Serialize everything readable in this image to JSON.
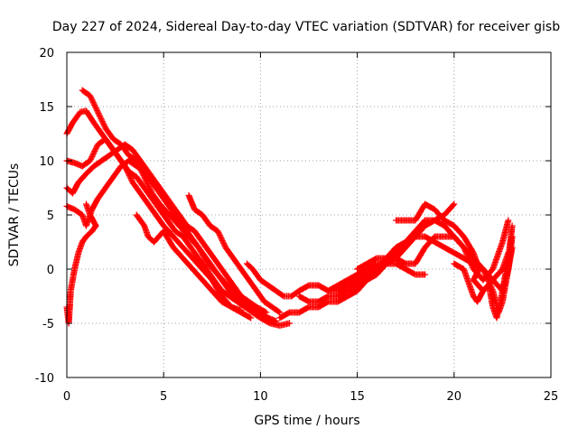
{
  "chart_data": {
    "type": "scatter",
    "title": "Day 227 of 2024, Sidereal Day-to-day VTEC variation (SDTVAR) for receiver gisb",
    "xlabel": "GPS time / hours",
    "ylabel": "SDTVAR / TECUs",
    "xlim": [
      0,
      25
    ],
    "ylim": [
      -10,
      20
    ],
    "xticks": [
      0,
      5,
      10,
      15,
      20,
      25
    ],
    "yticks": [
      -10,
      -5,
      0,
      5,
      10,
      15,
      20
    ],
    "xtick_labels": [
      "0",
      "5",
      "10",
      "15",
      "20",
      "25"
    ],
    "ytick_labels": [
      "-10",
      "-5",
      "0",
      "5",
      "10",
      "15",
      "20"
    ],
    "grid": true,
    "marker": "+",
    "color": "#ff0000",
    "series": [
      {
        "name": "trace-1",
        "points": [
          [
            0.0,
            12.5
          ],
          [
            0.3,
            13.5
          ],
          [
            0.7,
            14.5
          ],
          [
            1.0,
            14.6
          ],
          [
            1.4,
            13.5
          ],
          [
            1.8,
            12.5
          ],
          [
            2.2,
            11.5
          ],
          [
            2.6,
            10.5
          ],
          [
            3.0,
            9.5
          ],
          [
            3.4,
            8.0
          ],
          [
            3.8,
            7.0
          ],
          [
            4.2,
            6.0
          ],
          [
            4.6,
            5.0
          ],
          [
            5.0,
            4.0
          ],
          [
            5.5,
            3.0
          ],
          [
            6.0,
            2.0
          ],
          [
            6.5,
            1.0
          ],
          [
            7.0,
            0.0
          ],
          [
            7.5,
            -1.0
          ],
          [
            8.0,
            -2.5
          ],
          [
            8.5,
            -3.5
          ],
          [
            9.0,
            -4.0
          ],
          [
            9.5,
            -4.5
          ]
        ]
      },
      {
        "name": "trace-2",
        "points": [
          [
            0.8,
            16.5
          ],
          [
            1.2,
            16.0
          ],
          [
            1.6,
            14.5
          ],
          [
            2.0,
            13.0
          ],
          [
            2.4,
            12.0
          ],
          [
            2.8,
            11.5
          ],
          [
            3.2,
            10.5
          ],
          [
            3.6,
            10.0
          ],
          [
            4.0,
            8.5
          ],
          [
            4.4,
            7.0
          ],
          [
            4.8,
            6.0
          ],
          [
            5.3,
            5.0
          ],
          [
            5.8,
            4.0
          ],
          [
            6.3,
            3.0
          ],
          [
            6.8,
            2.0
          ],
          [
            7.3,
            0.5
          ],
          [
            7.8,
            -0.5
          ],
          [
            8.3,
            -1.5
          ],
          [
            8.8,
            -2.5
          ],
          [
            9.3,
            -3.0
          ],
          [
            9.8,
            -3.5
          ],
          [
            10.3,
            -4.0
          ]
        ]
      },
      {
        "name": "trace-3",
        "points": [
          [
            0.0,
            10.0
          ],
          [
            0.4,
            9.8
          ],
          [
            0.8,
            9.5
          ],
          [
            1.2,
            10.0
          ],
          [
            1.6,
            11.5
          ],
          [
            2.0,
            12.0
          ],
          [
            2.4,
            11.0
          ],
          [
            2.8,
            10.0
          ],
          [
            3.2,
            9.0
          ],
          [
            3.6,
            8.5
          ],
          [
            4.0,
            7.5
          ],
          [
            4.4,
            6.5
          ],
          [
            4.8,
            5.5
          ],
          [
            5.2,
            4.5
          ],
          [
            5.6,
            3.5
          ],
          [
            6.0,
            3.0
          ],
          [
            6.4,
            2.0
          ],
          [
            6.8,
            1.0
          ],
          [
            7.2,
            0.0
          ],
          [
            7.6,
            -1.0
          ],
          [
            8.0,
            -2.0
          ],
          [
            8.4,
            -2.5
          ],
          [
            8.8,
            -3.0
          ],
          [
            9.2,
            -3.5
          ],
          [
            9.6,
            -4.0
          ],
          [
            10.0,
            -4.5
          ],
          [
            10.5,
            -5.0
          ],
          [
            11.0,
            -5.2
          ],
          [
            11.5,
            -5.0
          ]
        ]
      },
      {
        "name": "trace-4",
        "points": [
          [
            0.0,
            7.5
          ],
          [
            0.3,
            7.0
          ],
          [
            0.6,
            8.0
          ],
          [
            1.0,
            8.8
          ],
          [
            1.4,
            9.5
          ],
          [
            1.8,
            10.0
          ],
          [
            2.2,
            10.5
          ],
          [
            2.6,
            11.0
          ],
          [
            3.0,
            11.5
          ],
          [
            3.4,
            11.0
          ],
          [
            3.8,
            10.0
          ],
          [
            4.2,
            9.0
          ],
          [
            4.6,
            8.0
          ],
          [
            5.0,
            7.0
          ],
          [
            5.4,
            6.0
          ],
          [
            5.8,
            5.0
          ],
          [
            6.2,
            4.0
          ],
          [
            6.6,
            3.5
          ],
          [
            7.0,
            2.5
          ],
          [
            7.4,
            1.5
          ],
          [
            7.8,
            0.5
          ],
          [
            8.2,
            -0.5
          ],
          [
            8.6,
            -1.5
          ],
          [
            9.0,
            -2.5
          ],
          [
            9.4,
            -3.0
          ],
          [
            9.8,
            -3.5
          ]
        ]
      },
      {
        "name": "trace-5",
        "points": [
          [
            0.0,
            5.8
          ],
          [
            0.4,
            5.5
          ],
          [
            0.8,
            5.0
          ],
          [
            1.0,
            4.0
          ],
          [
            1.3,
            5.5
          ],
          [
            1.6,
            6.5
          ],
          [
            2.0,
            7.5
          ],
          [
            2.4,
            8.5
          ],
          [
            2.8,
            9.5
          ],
          [
            3.2,
            10.0
          ],
          [
            3.6,
            9.5
          ],
          [
            4.0,
            9.0
          ],
          [
            4.4,
            8.0
          ],
          [
            4.8,
            7.0
          ],
          [
            5.2,
            6.0
          ],
          [
            5.6,
            5.0
          ],
          [
            6.0,
            4.0
          ],
          [
            6.4,
            3.0
          ],
          [
            6.8,
            2.0
          ],
          [
            7.2,
            1.0
          ],
          [
            7.6,
            0.0
          ],
          [
            8.0,
            -1.0
          ],
          [
            8.4,
            -2.0
          ],
          [
            8.8,
            -2.5
          ],
          [
            9.2,
            -3.0
          ],
          [
            9.6,
            -3.5
          ],
          [
            10.0,
            -4.0
          ],
          [
            10.4,
            -4.5
          ],
          [
            10.8,
            -4.8
          ]
        ]
      },
      {
        "name": "trace-6",
        "points": [
          [
            0.0,
            -3.5
          ],
          [
            0.1,
            -5.0
          ],
          [
            0.2,
            -2.0
          ],
          [
            0.4,
            0.0
          ],
          [
            0.6,
            1.5
          ],
          [
            0.8,
            2.5
          ],
          [
            1.0,
            3.0
          ],
          [
            1.3,
            3.5
          ],
          [
            1.5,
            4.0
          ],
          [
            1.2,
            5.0
          ],
          [
            1.0,
            6.0
          ]
        ]
      },
      {
        "name": "trace-7",
        "points": [
          [
            3.6,
            5.0
          ],
          [
            4.0,
            4.0
          ],
          [
            4.2,
            3.0
          ],
          [
            4.5,
            2.5
          ],
          [
            5.0,
            3.5
          ],
          [
            5.5,
            2.0
          ],
          [
            6.0,
            1.0
          ],
          [
            6.5,
            0.0
          ],
          [
            7.0,
            -1.0
          ],
          [
            7.5,
            -2.0
          ],
          [
            8.0,
            -3.0
          ],
          [
            8.5,
            -3.5
          ],
          [
            9.0,
            -3.8
          ]
        ]
      },
      {
        "name": "trace-8",
        "points": [
          [
            6.3,
            6.8
          ],
          [
            6.6,
            5.5
          ],
          [
            7.0,
            5.0
          ],
          [
            7.4,
            4.0
          ],
          [
            7.8,
            3.5
          ],
          [
            8.2,
            2.0
          ],
          [
            8.6,
            1.0
          ],
          [
            9.0,
            0.0
          ],
          [
            9.4,
            -1.0
          ],
          [
            9.8,
            -2.0
          ],
          [
            10.2,
            -3.0
          ],
          [
            10.6,
            -3.5
          ],
          [
            11.0,
            -4.0
          ]
        ]
      },
      {
        "name": "trace-9",
        "points": [
          [
            9.3,
            0.5
          ],
          [
            9.6,
            0.0
          ],
          [
            10.0,
            -1.0
          ],
          [
            10.4,
            -1.5
          ],
          [
            10.8,
            -2.0
          ],
          [
            11.2,
            -2.5
          ],
          [
            11.6,
            -2.5
          ],
          [
            12.0,
            -2.0
          ],
          [
            12.5,
            -1.5
          ],
          [
            13.0,
            -1.5
          ],
          [
            13.5,
            -2.0
          ],
          [
            14.0,
            -2.0
          ],
          [
            14.5,
            -1.5
          ],
          [
            15.0,
            -1.0
          ],
          [
            15.5,
            -0.5
          ],
          [
            16.0,
            0.0
          ],
          [
            16.5,
            0.5
          ],
          [
            17.0,
            1.0
          ],
          [
            17.5,
            2.0
          ],
          [
            18.0,
            3.0
          ],
          [
            18.5,
            4.0
          ],
          [
            19.0,
            4.5
          ],
          [
            19.5,
            5.0
          ],
          [
            20.0,
            6.0
          ]
        ]
      },
      {
        "name": "trace-10",
        "points": [
          [
            11.0,
            -4.5
          ],
          [
            11.5,
            -4.0
          ],
          [
            12.0,
            -4.0
          ],
          [
            12.5,
            -3.5
          ],
          [
            13.0,
            -3.5
          ],
          [
            13.5,
            -3.0
          ],
          [
            14.0,
            -3.0
          ],
          [
            14.5,
            -2.5
          ],
          [
            15.0,
            -2.0
          ],
          [
            15.5,
            -1.0
          ],
          [
            16.0,
            0.0
          ],
          [
            16.5,
            1.0
          ],
          [
            17.0,
            2.0
          ],
          [
            17.5,
            2.5
          ],
          [
            18.0,
            3.0
          ],
          [
            18.5,
            3.0
          ],
          [
            19.0,
            2.5
          ],
          [
            19.5,
            2.0
          ],
          [
            20.0,
            1.5
          ],
          [
            20.5,
            1.0
          ],
          [
            21.0,
            0.5
          ],
          [
            21.5,
            0.0
          ],
          [
            22.0,
            -1.0
          ],
          [
            22.5,
            -2.0
          ],
          [
            22.8,
            0.0
          ],
          [
            23.0,
            3.0
          ]
        ]
      },
      {
        "name": "trace-11",
        "points": [
          [
            12.0,
            -2.5
          ],
          [
            12.5,
            -3.0
          ],
          [
            13.0,
            -3.0
          ],
          [
            13.5,
            -2.5
          ],
          [
            14.0,
            -2.5
          ],
          [
            14.5,
            -2.0
          ],
          [
            15.0,
            -1.5
          ],
          [
            15.5,
            -1.0
          ],
          [
            16.0,
            -0.5
          ],
          [
            16.5,
            0.5
          ],
          [
            17.0,
            1.5
          ],
          [
            17.5,
            2.5
          ],
          [
            18.0,
            3.5
          ],
          [
            18.5,
            4.5
          ],
          [
            19.0,
            4.5
          ],
          [
            19.5,
            4.0
          ],
          [
            20.0,
            3.0
          ],
          [
            20.5,
            2.0
          ],
          [
            21.0,
            1.0
          ],
          [
            21.5,
            0.0
          ],
          [
            22.0,
            -2.0
          ],
          [
            22.3,
            -4.0
          ],
          [
            22.5,
            -3.0
          ],
          [
            22.7,
            -1.0
          ],
          [
            23.0,
            2.0
          ]
        ]
      },
      {
        "name": "trace-12",
        "points": [
          [
            15.0,
            0.0
          ],
          [
            15.5,
            0.5
          ],
          [
            16.0,
            1.0
          ],
          [
            16.5,
            1.0
          ],
          [
            17.0,
            1.0
          ],
          [
            17.5,
            0.5
          ],
          [
            18.0,
            0.5
          ],
          [
            18.5,
            2.0
          ],
          [
            19.0,
            3.0
          ],
          [
            19.5,
            3.0
          ],
          [
            20.0,
            3.0
          ],
          [
            20.5,
            2.0
          ],
          [
            21.0,
            0.0
          ],
          [
            21.5,
            -1.0
          ],
          [
            22.0,
            0.0
          ],
          [
            22.5,
            2.5
          ],
          [
            22.8,
            4.5
          ]
        ]
      },
      {
        "name": "trace-13",
        "points": [
          [
            17.0,
            4.5
          ],
          [
            17.5,
            4.5
          ],
          [
            18.0,
            4.5
          ],
          [
            18.5,
            6.0
          ],
          [
            19.0,
            5.5
          ],
          [
            19.5,
            4.5
          ],
          [
            20.0,
            4.0
          ],
          [
            20.5,
            3.0
          ],
          [
            21.0,
            1.5
          ],
          [
            21.3,
            0.0
          ],
          [
            21.0,
            -1.0
          ],
          [
            21.5,
            -2.0
          ],
          [
            22.0,
            -1.0
          ],
          [
            22.5,
            0.0
          ],
          [
            22.8,
            1.5
          ]
        ]
      },
      {
        "name": "trace-14",
        "points": [
          [
            13.5,
            -2.0
          ],
          [
            14.0,
            -1.5
          ],
          [
            14.5,
            -1.0
          ],
          [
            15.0,
            -0.5
          ],
          [
            15.5,
            0.0
          ],
          [
            16.0,
            0.5
          ],
          [
            16.5,
            0.5
          ],
          [
            17.0,
            0.5
          ],
          [
            17.5,
            0.0
          ],
          [
            18.0,
            -0.5
          ],
          [
            18.5,
            -0.5
          ]
        ]
      },
      {
        "name": "trace-15",
        "points": [
          [
            20.0,
            0.5
          ],
          [
            20.5,
            0.0
          ],
          [
            20.8,
            -1.5
          ],
          [
            21.0,
            -2.5
          ],
          [
            21.2,
            -3.0
          ],
          [
            21.5,
            -2.0
          ],
          [
            21.8,
            -1.5
          ],
          [
            22.0,
            -3.5
          ],
          [
            22.2,
            -4.5
          ],
          [
            22.4,
            -3.0
          ],
          [
            22.6,
            -1.0
          ],
          [
            22.8,
            1.0
          ],
          [
            23.0,
            4.0
          ]
        ]
      }
    ]
  }
}
